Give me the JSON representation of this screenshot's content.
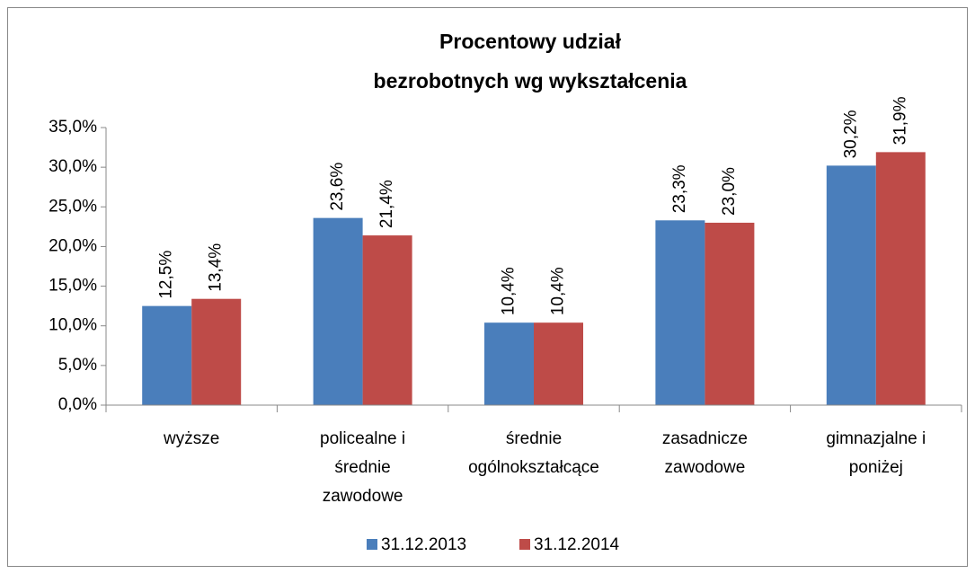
{
  "chart_data": {
    "type": "bar",
    "title": [
      "Procentowy udział",
      "bezrobotnych wg wykształcenia"
    ],
    "categories": [
      [
        "wyższe"
      ],
      [
        "policealne i",
        "średnie",
        "zawodowe"
      ],
      [
        "średnie",
        "ogólnokształcące"
      ],
      [
        "zasadnicze",
        "zawodowe"
      ],
      [
        "gimnazjalne i",
        "poniżej"
      ]
    ],
    "series": [
      {
        "name": "31.12.2013",
        "color": "#4a7ebb",
        "values": [
          12.5,
          23.6,
          10.4,
          23.3,
          30.2
        ],
        "value_labels": [
          "12,5%",
          "23,6%",
          "10,4%",
          "23,3%",
          "30,2%"
        ]
      },
      {
        "name": "31.12.2014",
        "color": "#be4b48",
        "values": [
          13.4,
          21.4,
          10.4,
          23.0,
          31.9
        ],
        "value_labels": [
          "13,4%",
          "21,4%",
          "10,4%",
          "23,0%",
          "31,9%"
        ]
      }
    ],
    "ylim": [
      0,
      35
    ],
    "yticks": [
      {
        "value": 0,
        "label": "0,0%"
      },
      {
        "value": 5,
        "label": "5,0%"
      },
      {
        "value": 10,
        "label": "10,0%"
      },
      {
        "value": 15,
        "label": "15,0%"
      },
      {
        "value": 20,
        "label": "20,0%"
      },
      {
        "value": 25,
        "label": "25,0%"
      },
      {
        "value": 30,
        "label": "30,0%"
      },
      {
        "value": 35,
        "label": "35,0%"
      }
    ],
    "grid": false,
    "legend": "bottom"
  }
}
